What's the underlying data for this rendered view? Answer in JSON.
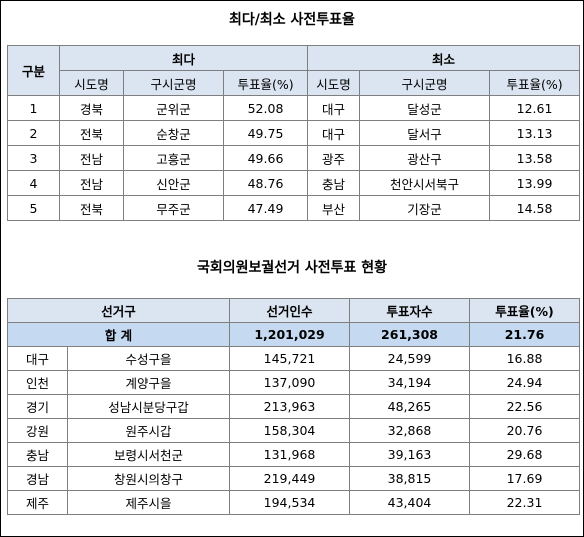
{
  "table1": {
    "title": "최다/최소 사전투표율",
    "header_group": "구분",
    "group_max": "최다",
    "group_min": "최소",
    "col_sido": "시도명",
    "col_gu": "구시군명",
    "col_rate": "투표율(%)",
    "rows": [
      {
        "rank": "1",
        "max_sido": "경북",
        "max_gu": "군위군",
        "max_rate": "52.08",
        "min_sido": "대구",
        "min_gu": "달성군",
        "min_rate": "12.61"
      },
      {
        "rank": "2",
        "max_sido": "전북",
        "max_gu": "순창군",
        "max_rate": "49.75",
        "min_sido": "대구",
        "min_gu": "달서구",
        "min_rate": "13.13"
      },
      {
        "rank": "3",
        "max_sido": "전남",
        "max_gu": "고흥군",
        "max_rate": "49.66",
        "min_sido": "광주",
        "min_gu": "광산구",
        "min_rate": "13.58"
      },
      {
        "rank": "4",
        "max_sido": "전남",
        "max_gu": "신안군",
        "max_rate": "48.76",
        "min_sido": "충남",
        "min_gu": "천안시서북구",
        "min_rate": "13.99"
      },
      {
        "rank": "5",
        "max_sido": "전북",
        "max_gu": "무주군",
        "max_rate": "47.49",
        "min_sido": "부산",
        "min_gu": "기장군",
        "min_rate": "14.58"
      }
    ]
  },
  "table2": {
    "title": "국회의원보궐선거 사전투표 현황",
    "col_district": "선거구",
    "col_voters": "선거인수",
    "col_ballots": "투표자수",
    "col_rate": "투표율(%)",
    "total": {
      "label": "합 계",
      "voters": "1,201,029",
      "ballots": "261,308",
      "rate": "21.76"
    },
    "rows": [
      {
        "sido": "대구",
        "district": "수성구을",
        "voters": "145,721",
        "ballots": "24,599",
        "rate": "16.88"
      },
      {
        "sido": "인천",
        "district": "계양구을",
        "voters": "137,090",
        "ballots": "34,194",
        "rate": "24.94"
      },
      {
        "sido": "경기",
        "district": "성남시분당구갑",
        "voters": "213,963",
        "ballots": "48,265",
        "rate": "22.56"
      },
      {
        "sido": "강원",
        "district": "원주시갑",
        "voters": "158,304",
        "ballots": "32,868",
        "rate": "20.76"
      },
      {
        "sido": "충남",
        "district": "보령시서천군",
        "voters": "131,968",
        "ballots": "39,163",
        "rate": "29.68"
      },
      {
        "sido": "경남",
        "district": "창원시의창구",
        "voters": "219,449",
        "ballots": "38,815",
        "rate": "17.69"
      },
      {
        "sido": "제주",
        "district": "제주시을",
        "voters": "194,534",
        "ballots": "43,404",
        "rate": "22.31"
      }
    ]
  }
}
